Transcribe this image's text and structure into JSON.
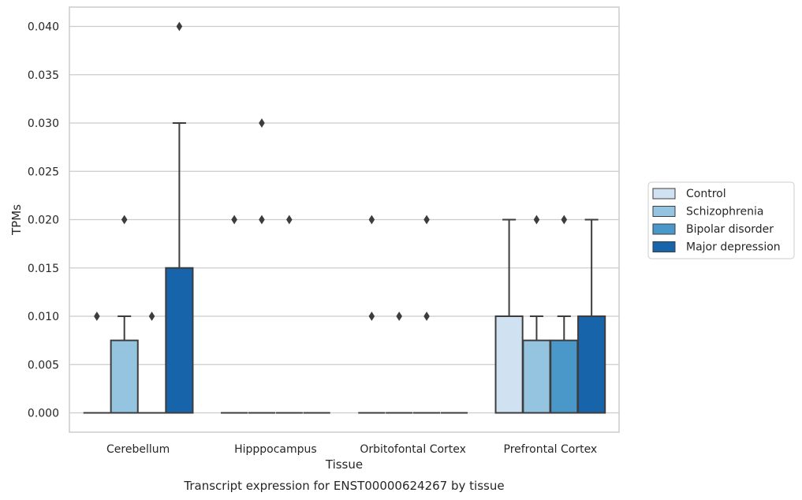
{
  "chart_data": {
    "type": "box",
    "xlabel": "Tissue",
    "ylabel": "TPMs",
    "caption": "Transcript expression for ENST00000624267 by tissue",
    "ylim": [
      -0.002,
      0.042
    ],
    "yticks": [
      "0.000",
      "0.005",
      "0.010",
      "0.015",
      "0.020",
      "0.025",
      "0.030",
      "0.035",
      "0.040"
    ],
    "grid": "horizontal",
    "legend_position": "right",
    "categories": [
      "Cerebellum",
      "Hipppocampus",
      "Orbitofontal Cortex",
      "Prefrontal Cortex"
    ],
    "series": [
      {
        "name": "Control",
        "color": "#d0e1f2",
        "boxes": [
          {
            "q1": 0,
            "median": 0,
            "q3": 0,
            "whisker_low": 0,
            "whisker_high": 0,
            "outliers": [
              0.01
            ]
          },
          {
            "q1": 0,
            "median": 0,
            "q3": 0,
            "whisker_low": 0,
            "whisker_high": 0,
            "outliers": [
              0.02
            ]
          },
          {
            "q1": 0,
            "median": 0,
            "q3": 0,
            "whisker_low": 0,
            "whisker_high": 0,
            "outliers": [
              0.01,
              0.02
            ]
          },
          {
            "q1": 0,
            "median": 0,
            "q3": 0.01,
            "whisker_low": 0,
            "whisker_high": 0.02,
            "outliers": []
          }
        ]
      },
      {
        "name": "Schizophrenia",
        "color": "#94c4df",
        "boxes": [
          {
            "q1": 0,
            "median": 0,
            "q3": 0.0075,
            "whisker_low": 0,
            "whisker_high": 0.01,
            "outliers": [
              0.02
            ]
          },
          {
            "q1": 0,
            "median": 0,
            "q3": 0,
            "whisker_low": 0,
            "whisker_high": 0,
            "outliers": [
              0.02,
              0.03
            ]
          },
          {
            "q1": 0,
            "median": 0,
            "q3": 0,
            "whisker_low": 0,
            "whisker_high": 0,
            "outliers": [
              0.01
            ]
          },
          {
            "q1": 0,
            "median": 0,
            "q3": 0.0075,
            "whisker_low": 0,
            "whisker_high": 0.01,
            "outliers": [
              0.02
            ]
          }
        ]
      },
      {
        "name": "Bipolar disorder",
        "color": "#4a98c9",
        "boxes": [
          {
            "q1": 0,
            "median": 0,
            "q3": 0,
            "whisker_low": 0,
            "whisker_high": 0,
            "outliers": [
              0.01
            ]
          },
          {
            "q1": 0,
            "median": 0,
            "q3": 0,
            "whisker_low": 0,
            "whisker_high": 0,
            "outliers": [
              0.02
            ]
          },
          {
            "q1": 0,
            "median": 0,
            "q3": 0,
            "whisker_low": 0,
            "whisker_high": 0,
            "outliers": [
              0.01,
              0.02
            ]
          },
          {
            "q1": 0,
            "median": 0,
            "q3": 0.0075,
            "whisker_low": 0,
            "whisker_high": 0.01,
            "outliers": [
              0.02
            ]
          }
        ]
      },
      {
        "name": "Major depression",
        "color": "#1764ab",
        "boxes": [
          {
            "q1": 0,
            "median": 0,
            "q3": 0.015,
            "whisker_low": 0,
            "whisker_high": 0.03,
            "outliers": [
              0.04
            ]
          },
          {
            "q1": 0,
            "median": 0,
            "q3": 0,
            "whisker_low": 0,
            "whisker_high": 0,
            "outliers": []
          },
          {
            "q1": 0,
            "median": 0,
            "q3": 0,
            "whisker_low": 0,
            "whisker_high": 0,
            "outliers": []
          },
          {
            "q1": 0,
            "median": 0,
            "q3": 0.01,
            "whisker_low": 0,
            "whisker_high": 0.02,
            "outliers": []
          }
        ]
      }
    ]
  }
}
